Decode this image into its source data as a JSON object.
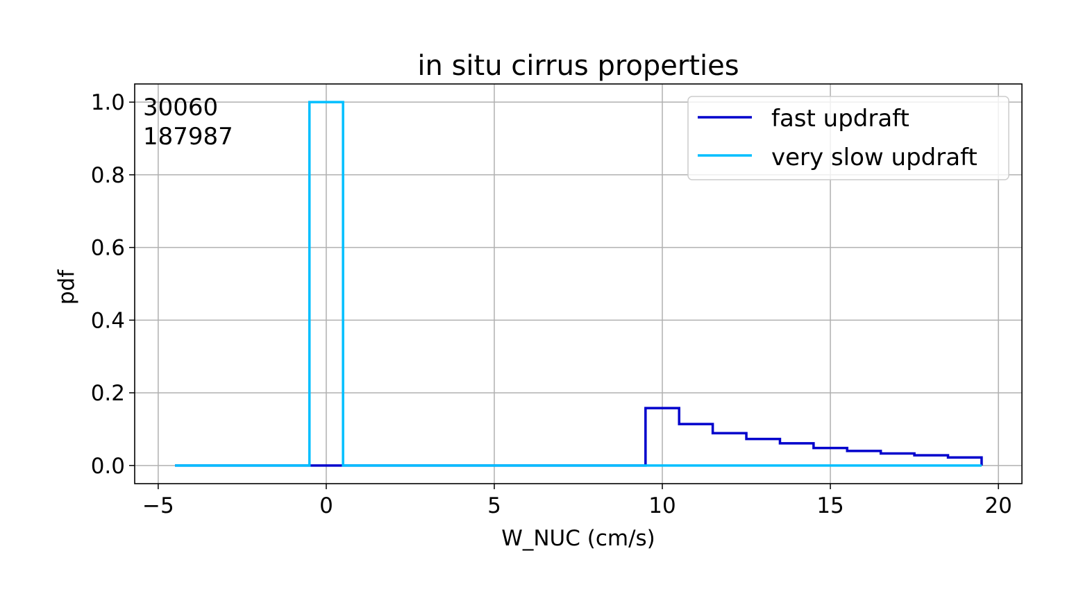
{
  "chart_data": {
    "type": "line",
    "drawstyle": "steps",
    "title": "in situ cirrus properties",
    "xlabel": "W_NUC (cm/s)",
    "ylabel": "pdf",
    "xlim": [
      -5.7,
      20.7
    ],
    "ylim": [
      -0.05,
      1.05
    ],
    "grid": true,
    "legend_placement": "top-right",
    "x_ticks": [
      -5,
      0,
      5,
      10,
      15,
      20
    ],
    "x_tick_labels": [
      "−5",
      "0",
      "5",
      "10",
      "15",
      "20"
    ],
    "y_ticks": [
      0.0,
      0.2,
      0.4,
      0.6,
      0.8,
      1.0
    ],
    "y_tick_labels": [
      "0.0",
      "0.2",
      "0.4",
      "0.6",
      "0.8",
      "1.0"
    ],
    "annotations": [
      "30060",
      "187987"
    ],
    "series": [
      {
        "name": "fast updraft",
        "color": "#0000cc",
        "bin_edges": [
          -4.5,
          -3.5,
          -2.5,
          -1.5,
          -0.5,
          0.5,
          1.5,
          2.5,
          3.5,
          4.5,
          5.5,
          6.5,
          7.5,
          8.5,
          9.5,
          10.5,
          11.5,
          12.5,
          13.5,
          14.5,
          15.5,
          16.5,
          17.5,
          18.5,
          19.5
        ],
        "values": [
          0,
          0,
          0,
          0,
          0,
          0,
          0,
          0,
          0,
          0,
          0,
          0,
          0,
          0,
          0.158,
          0.114,
          0.089,
          0.073,
          0.061,
          0.048,
          0.04,
          0.033,
          0.028,
          0.022
        ]
      },
      {
        "name": "very slow updraft",
        "color": "#00bfff",
        "bin_edges": [
          -4.5,
          -3.5,
          -2.5,
          -1.5,
          -0.5,
          0.5,
          1.5,
          2.5,
          3.5,
          4.5,
          5.5,
          6.5,
          7.5,
          8.5,
          9.5,
          10.5,
          11.5,
          12.5,
          13.5,
          14.5,
          15.5,
          16.5,
          17.5,
          18.5,
          19.5
        ],
        "values": [
          0,
          0,
          0,
          0,
          1.0,
          0,
          0,
          0,
          0,
          0,
          0,
          0,
          0,
          0,
          0,
          0,
          0,
          0,
          0,
          0,
          0,
          0,
          0,
          0
        ]
      }
    ]
  }
}
